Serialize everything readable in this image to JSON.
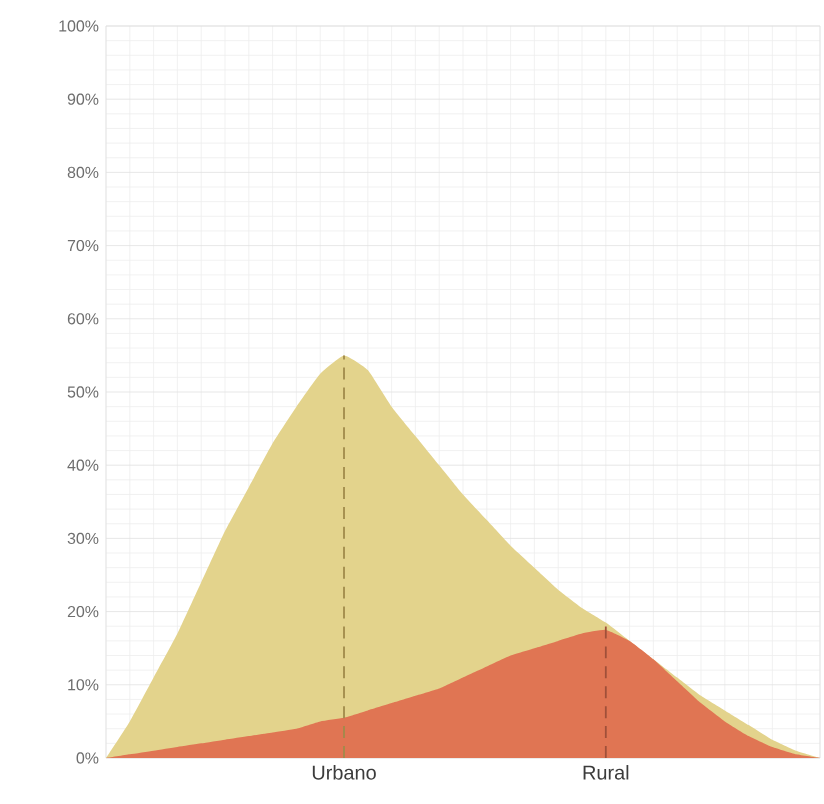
{
  "chart_data": {
    "type": "area",
    "categories": [
      null,
      null,
      null,
      null,
      null,
      null,
      null,
      null,
      null,
      null,
      "Urbano",
      null,
      null,
      null,
      null,
      null,
      null,
      null,
      null,
      null,
      null,
      "Rural",
      null,
      null,
      null,
      null,
      null,
      null,
      null,
      null,
      null
    ],
    "series": [
      {
        "color": "#e3d38c",
        "values": [
          0,
          5,
          11,
          17,
          24,
          31,
          37,
          43,
          48,
          52.5,
          55,
          53,
          48,
          44,
          40,
          36,
          32.5,
          29,
          26,
          23,
          20.5,
          18.5,
          16,
          13.5,
          11,
          8.5,
          6.5,
          4.5,
          2.5,
          1,
          0
        ]
      },
      {
        "color": "#e07553",
        "values": [
          0,
          0.5,
          1,
          1.5,
          2,
          2.5,
          3,
          3.5,
          4,
          5,
          5.5,
          6.5,
          7.5,
          8.5,
          9.5,
          11,
          12.5,
          14,
          15,
          16,
          17,
          17.5,
          16,
          13.5,
          10.5,
          7.5,
          5,
          3,
          1.5,
          0.5,
          0
        ]
      }
    ],
    "ylim": [
      0,
      100
    ],
    "yticks": [
      {
        "value": 0,
        "label": "0%"
      },
      {
        "value": 10,
        "label": "10%"
      },
      {
        "value": 20,
        "label": "20%"
      },
      {
        "value": 30,
        "label": "30%"
      },
      {
        "value": 40,
        "label": "40%"
      },
      {
        "value": 50,
        "label": "50%"
      },
      {
        "value": 60,
        "label": "60%"
      },
      {
        "value": 70,
        "label": "70%"
      },
      {
        "value": 80,
        "label": "80%"
      },
      {
        "value": 90,
        "label": "90%"
      },
      {
        "value": 100,
        "label": "100%"
      }
    ],
    "grid": true,
    "ref_lines": [
      {
        "axis": "x",
        "value": "Urbano",
        "color": "#a08a4a",
        "line_style": "dashed"
      },
      {
        "axis": "x",
        "value": "Rural",
        "color": "#a0503a",
        "line_style": "dashed"
      }
    ]
  }
}
